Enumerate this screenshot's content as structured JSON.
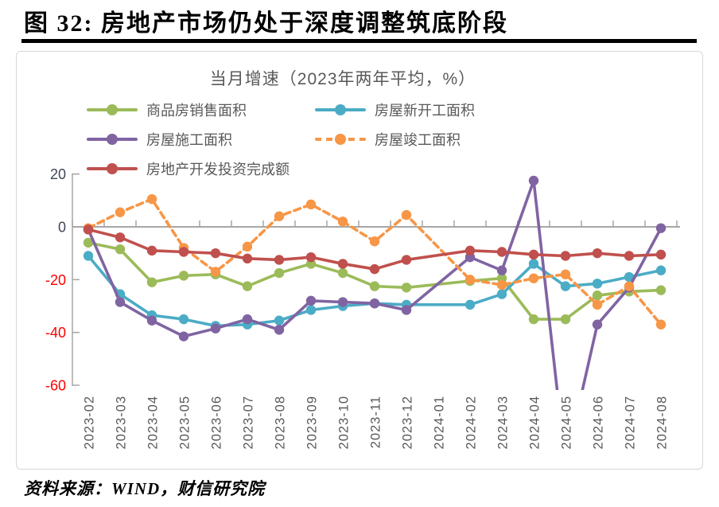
{
  "figure": {
    "number_title": "图 32:  房地产市场仍处于深度调整筑底阶段",
    "source": "资料来源：WIND，财信研究院"
  },
  "chart_data": {
    "type": "line",
    "title": "当月增速（2023年两年平均，%）",
    "categories": [
      "2023-02",
      "2023-03",
      "2023-04",
      "2023-05",
      "2023-06",
      "2023-07",
      "2023-08",
      "2023-09",
      "2023-10",
      "2023-11",
      "2023-12",
      "2024-01",
      "2024-02",
      "2024-03",
      "2024-04",
      "2024-05",
      "2024-06",
      "2024-07",
      "2024-08"
    ],
    "series": [
      {
        "name": "商品房销售面积",
        "color": "#9BBB59",
        "line_style": "solid",
        "values": [
          -6,
          -8.5,
          -21,
          -18.5,
          -18,
          -22.5,
          -17.5,
          -14,
          -17.5,
          -22.5,
          -23,
          null,
          -20.5,
          -19.5,
          -35,
          -35,
          -26,
          -24.5,
          -24
        ]
      },
      {
        "name": "房屋新开工面积",
        "color": "#4BACC6",
        "line_style": "solid",
        "values": [
          -11,
          -25.5,
          -33.5,
          -35,
          -37.5,
          -37,
          -35.5,
          -31.5,
          -30,
          -29,
          -29.5,
          null,
          -29.5,
          -25.5,
          -14,
          -22.5,
          -21.5,
          -19,
          -16.5
        ]
      },
      {
        "name": "房屋施工面积",
        "color": "#8064A2",
        "line_style": "solid",
        "values": [
          -1,
          -28.5,
          -35.5,
          -41.5,
          -38.5,
          -35,
          -39,
          -28,
          -28.5,
          -29,
          -31.5,
          null,
          -11.5,
          -16.5,
          17.5,
          -90,
          -37,
          -23,
          -0.5
        ],
        "note": "2024-05 点低于 -60，线条超出绘图区下边界（-90 为作图估计值）"
      },
      {
        "name": "房屋竣工面积",
        "color": "#F79646",
        "line_style": "dashed",
        "values": [
          -0.5,
          5.5,
          10.5,
          -8,
          -17,
          -7.5,
          4,
          8.5,
          2,
          -5.5,
          4.5,
          null,
          -20,
          -22,
          -19.5,
          -18,
          -29.5,
          -22.5,
          -37
        ]
      },
      {
        "name": "房地产开发投资完成额",
        "color": "#C0504D",
        "line_style": "solid",
        "values": [
          -1,
          -4,
          -9,
          -9.5,
          -10,
          -12,
          -12.5,
          -11.5,
          -14,
          -16,
          -12.5,
          null,
          -9,
          -9.5,
          -10.5,
          -11,
          -10,
          -11,
          -10.5
        ]
      }
    ],
    "xlabel": "",
    "ylabel": "",
    "ylim": [
      -60,
      20
    ],
    "yticks": [
      20,
      0,
      -20,
      -40,
      -60
    ],
    "grid": false,
    "legend_position": "top-two-columns",
    "gap_months": [
      "2024-01"
    ],
    "styles": {
      "axis_color": "#A6A6A6",
      "ytick_positive_color": "#3F4757",
      "ytick_negative_color": "#FF0000",
      "xtick_color": "#595959",
      "title_color": "#595959",
      "legend_text_color": "#595959"
    }
  }
}
